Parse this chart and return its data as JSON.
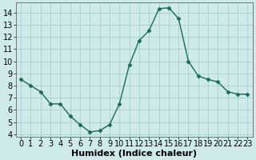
{
  "x": [
    0,
    1,
    2,
    3,
    4,
    5,
    6,
    7,
    8,
    9,
    10,
    11,
    12,
    13,
    14,
    15,
    16,
    17,
    18,
    19,
    20,
    21,
    22,
    23
  ],
  "y": [
    8.5,
    8.0,
    7.5,
    6.5,
    6.5,
    5.5,
    4.8,
    4.2,
    4.3,
    4.8,
    6.5,
    9.7,
    11.7,
    12.5,
    14.3,
    14.4,
    13.5,
    10.0,
    8.8,
    8.5,
    8.3,
    7.5,
    7.3,
    7.3
  ],
  "line_color": "#1a6b5a",
  "marker": "D",
  "marker_size": 2.5,
  "bg_color": "#ceeaea",
  "grid_color": "#aacece",
  "xlabel": "Humidex (Indice chaleur)",
  "xlim": [
    -0.5,
    23.5
  ],
  "ylim": [
    3.8,
    14.8
  ],
  "yticks": [
    4,
    5,
    6,
    7,
    8,
    9,
    10,
    11,
    12,
    13,
    14
  ],
  "xticks": [
    0,
    1,
    2,
    3,
    4,
    5,
    6,
    7,
    8,
    9,
    10,
    11,
    12,
    13,
    14,
    15,
    16,
    17,
    18,
    19,
    20,
    21,
    22,
    23
  ],
  "font_size": 7,
  "xlabel_fontsize": 8
}
